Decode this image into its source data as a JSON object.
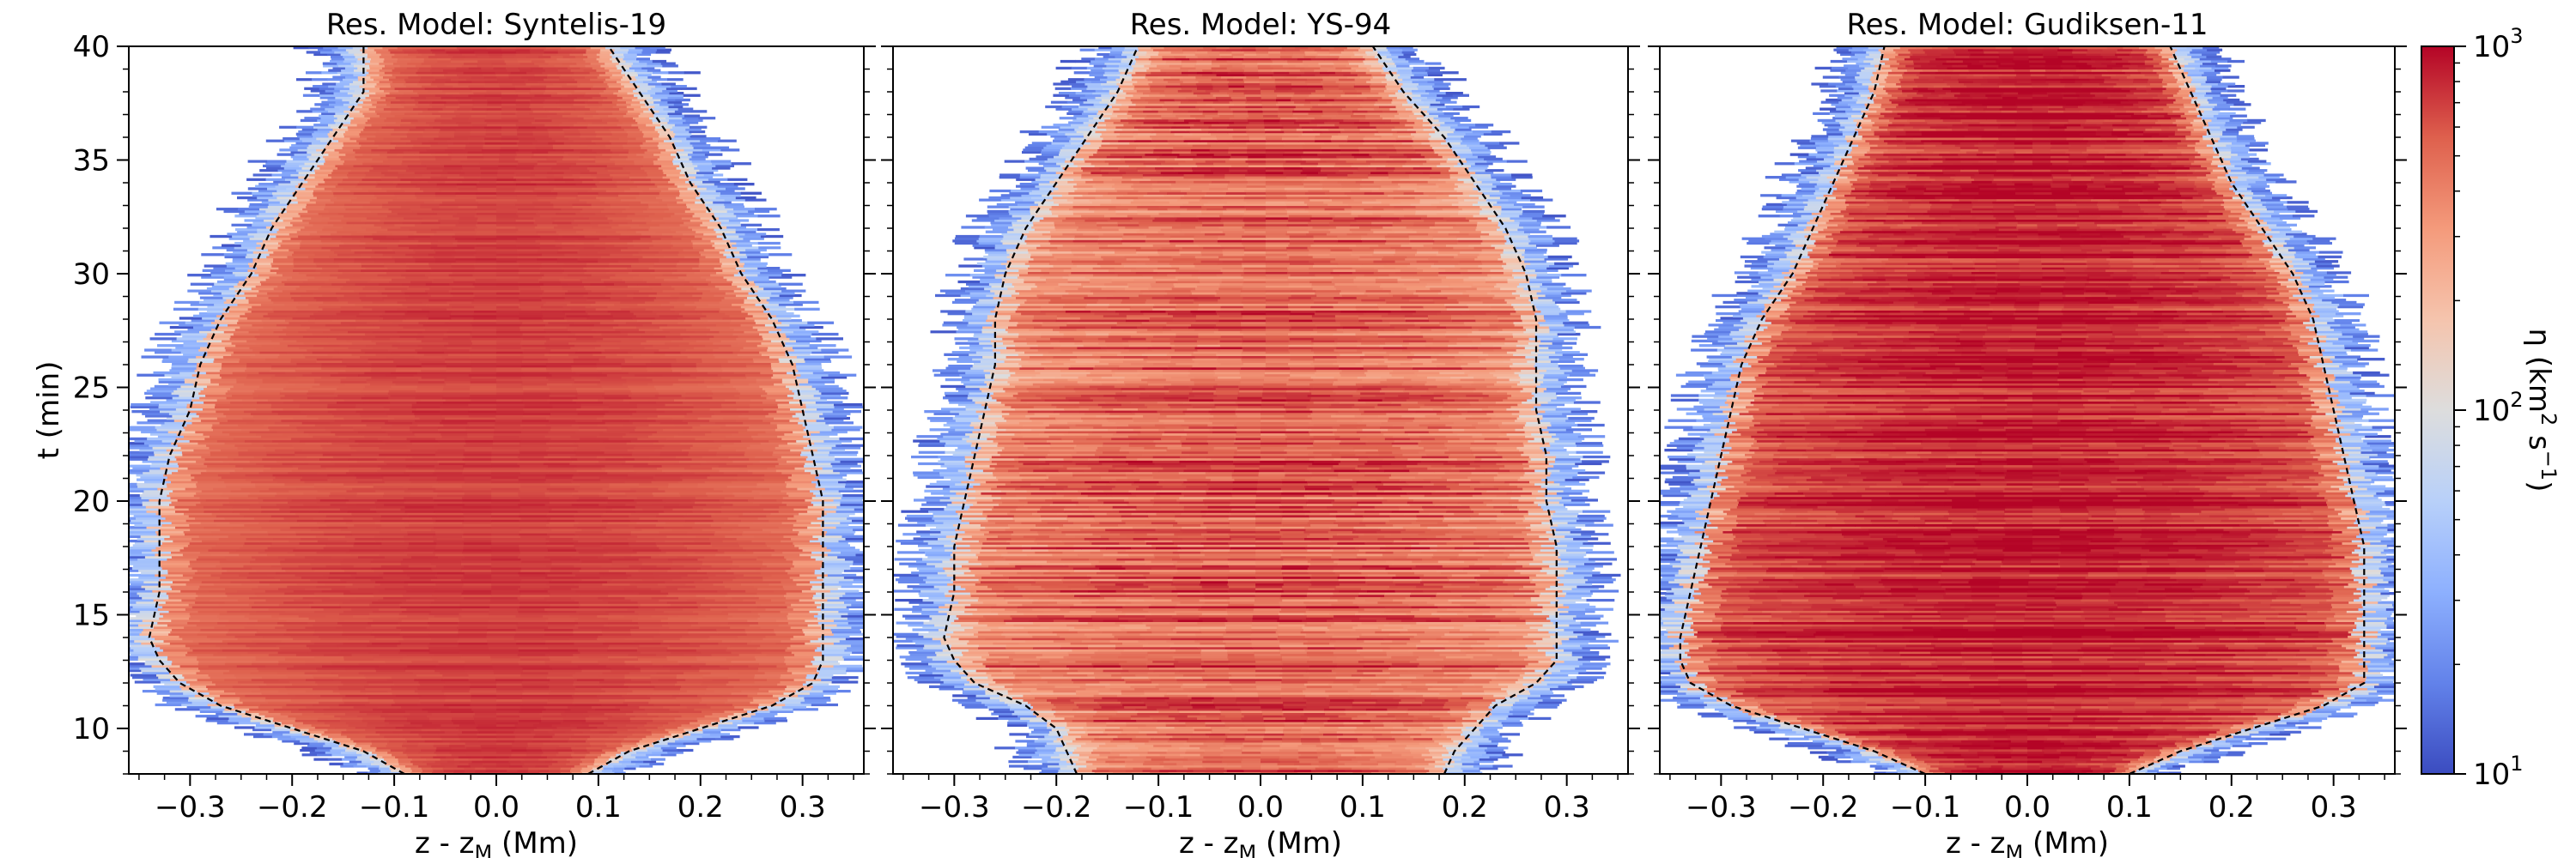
{
  "chart_data": [
    {
      "type": "heatmap",
      "title": "Res. Model: Syntelis-19",
      "xlabel": "z - z",
      "xlabel_sub": "M",
      "xlabel_unit": "(Mm)",
      "ylabel": "t (min)",
      "xlim": [
        -0.36,
        0.36
      ],
      "ylim": [
        8,
        40
      ],
      "xticks": [
        "-0.3",
        "-0.2",
        "-0.1",
        "0.0",
        "0.1",
        "0.2",
        "0.3"
      ],
      "yticks": [
        "10",
        "15",
        "20",
        "25",
        "30",
        "35",
        "40"
      ],
      "contour_t": [
        8,
        9,
        10,
        11,
        12,
        13,
        14,
        16,
        18,
        20,
        22,
        24,
        26,
        28,
        30,
        32,
        34,
        36,
        38,
        40
      ],
      "contour_left": [
        -0.09,
        -0.13,
        -0.2,
        -0.27,
        -0.31,
        -0.33,
        -0.34,
        -0.33,
        -0.33,
        -0.33,
        -0.32,
        -0.3,
        -0.29,
        -0.27,
        -0.24,
        -0.22,
        -0.19,
        -0.16,
        -0.13,
        -0.13
      ],
      "contour_right": [
        0.09,
        0.13,
        0.2,
        0.27,
        0.31,
        0.32,
        0.32,
        0.32,
        0.32,
        0.32,
        0.31,
        0.3,
        0.29,
        0.27,
        0.24,
        0.22,
        0.19,
        0.17,
        0.14,
        0.11
      ],
      "core_peak": 700,
      "noise": 0.15
    },
    {
      "type": "heatmap",
      "title": "Res. Model: YS-94",
      "xlabel": "z - z",
      "xlabel_sub": "M",
      "xlabel_unit": "(Mm)",
      "ylabel": "",
      "xlim": [
        -0.36,
        0.36
      ],
      "ylim": [
        8,
        40
      ],
      "xticks": [
        "-0.3",
        "-0.2",
        "-0.1",
        "0.0",
        "0.1",
        "0.2",
        "0.3"
      ],
      "yticks": [
        "10",
        "15",
        "20",
        "25",
        "30",
        "35",
        "40"
      ],
      "contour_t": [
        8,
        9,
        10,
        11,
        12,
        13,
        14,
        16,
        18,
        20,
        22,
        24,
        26,
        28,
        30,
        32,
        34,
        36,
        38,
        40
      ],
      "contour_left": [
        -0.18,
        -0.19,
        -0.2,
        -0.23,
        -0.28,
        -0.3,
        -0.31,
        -0.3,
        -0.3,
        -0.29,
        -0.28,
        -0.27,
        -0.26,
        -0.26,
        -0.25,
        -0.23,
        -0.2,
        -0.17,
        -0.14,
        -0.12
      ],
      "contour_right": [
        0.18,
        0.19,
        0.21,
        0.23,
        0.27,
        0.29,
        0.29,
        0.29,
        0.29,
        0.28,
        0.28,
        0.27,
        0.27,
        0.27,
        0.26,
        0.24,
        0.21,
        0.18,
        0.14,
        0.11
      ],
      "core_peak": 550,
      "noise": 0.55
    },
    {
      "type": "heatmap",
      "title": "Res. Model: Gudiksen-11",
      "xlabel": "z - z",
      "xlabel_sub": "M",
      "xlabel_unit": "(Mm)",
      "ylabel": "",
      "xlim": [
        -0.36,
        0.36
      ],
      "ylim": [
        8,
        40
      ],
      "xticks": [
        "-0.3",
        "-0.2",
        "-0.1",
        "0.0",
        "0.1",
        "0.2",
        "0.3"
      ],
      "yticks": [
        "10",
        "15",
        "20",
        "25",
        "30",
        "35",
        "40"
      ],
      "contour_t": [
        8,
        9,
        10,
        11,
        12,
        13,
        14,
        16,
        18,
        20,
        22,
        24,
        26,
        28,
        30,
        32,
        34,
        36,
        38,
        40
      ],
      "contour_left": [
        -0.1,
        -0.15,
        -0.22,
        -0.29,
        -0.33,
        -0.34,
        -0.34,
        -0.33,
        -0.32,
        -0.31,
        -0.3,
        -0.29,
        -0.28,
        -0.26,
        -0.23,
        -0.21,
        -0.19,
        -0.17,
        -0.15,
        -0.14
      ],
      "contour_right": [
        0.1,
        0.15,
        0.22,
        0.29,
        0.33,
        0.33,
        0.33,
        0.33,
        0.33,
        0.32,
        0.31,
        0.3,
        0.29,
        0.28,
        0.26,
        0.23,
        0.2,
        0.18,
        0.16,
        0.14
      ],
      "core_peak": 850,
      "noise": 0.35
    }
  ],
  "colorbar": {
    "label_prefix": "η (km",
    "label_exp1": "2",
    "label_mid": " s",
    "label_exp2": "−1",
    "label_suffix": ")",
    "scale": "log",
    "range": [
      10,
      1000
    ],
    "tick_base": "10",
    "tick_exponents": [
      "1",
      "2",
      "3"
    ],
    "colormap": "coolwarm"
  },
  "contour_color": "#000000"
}
